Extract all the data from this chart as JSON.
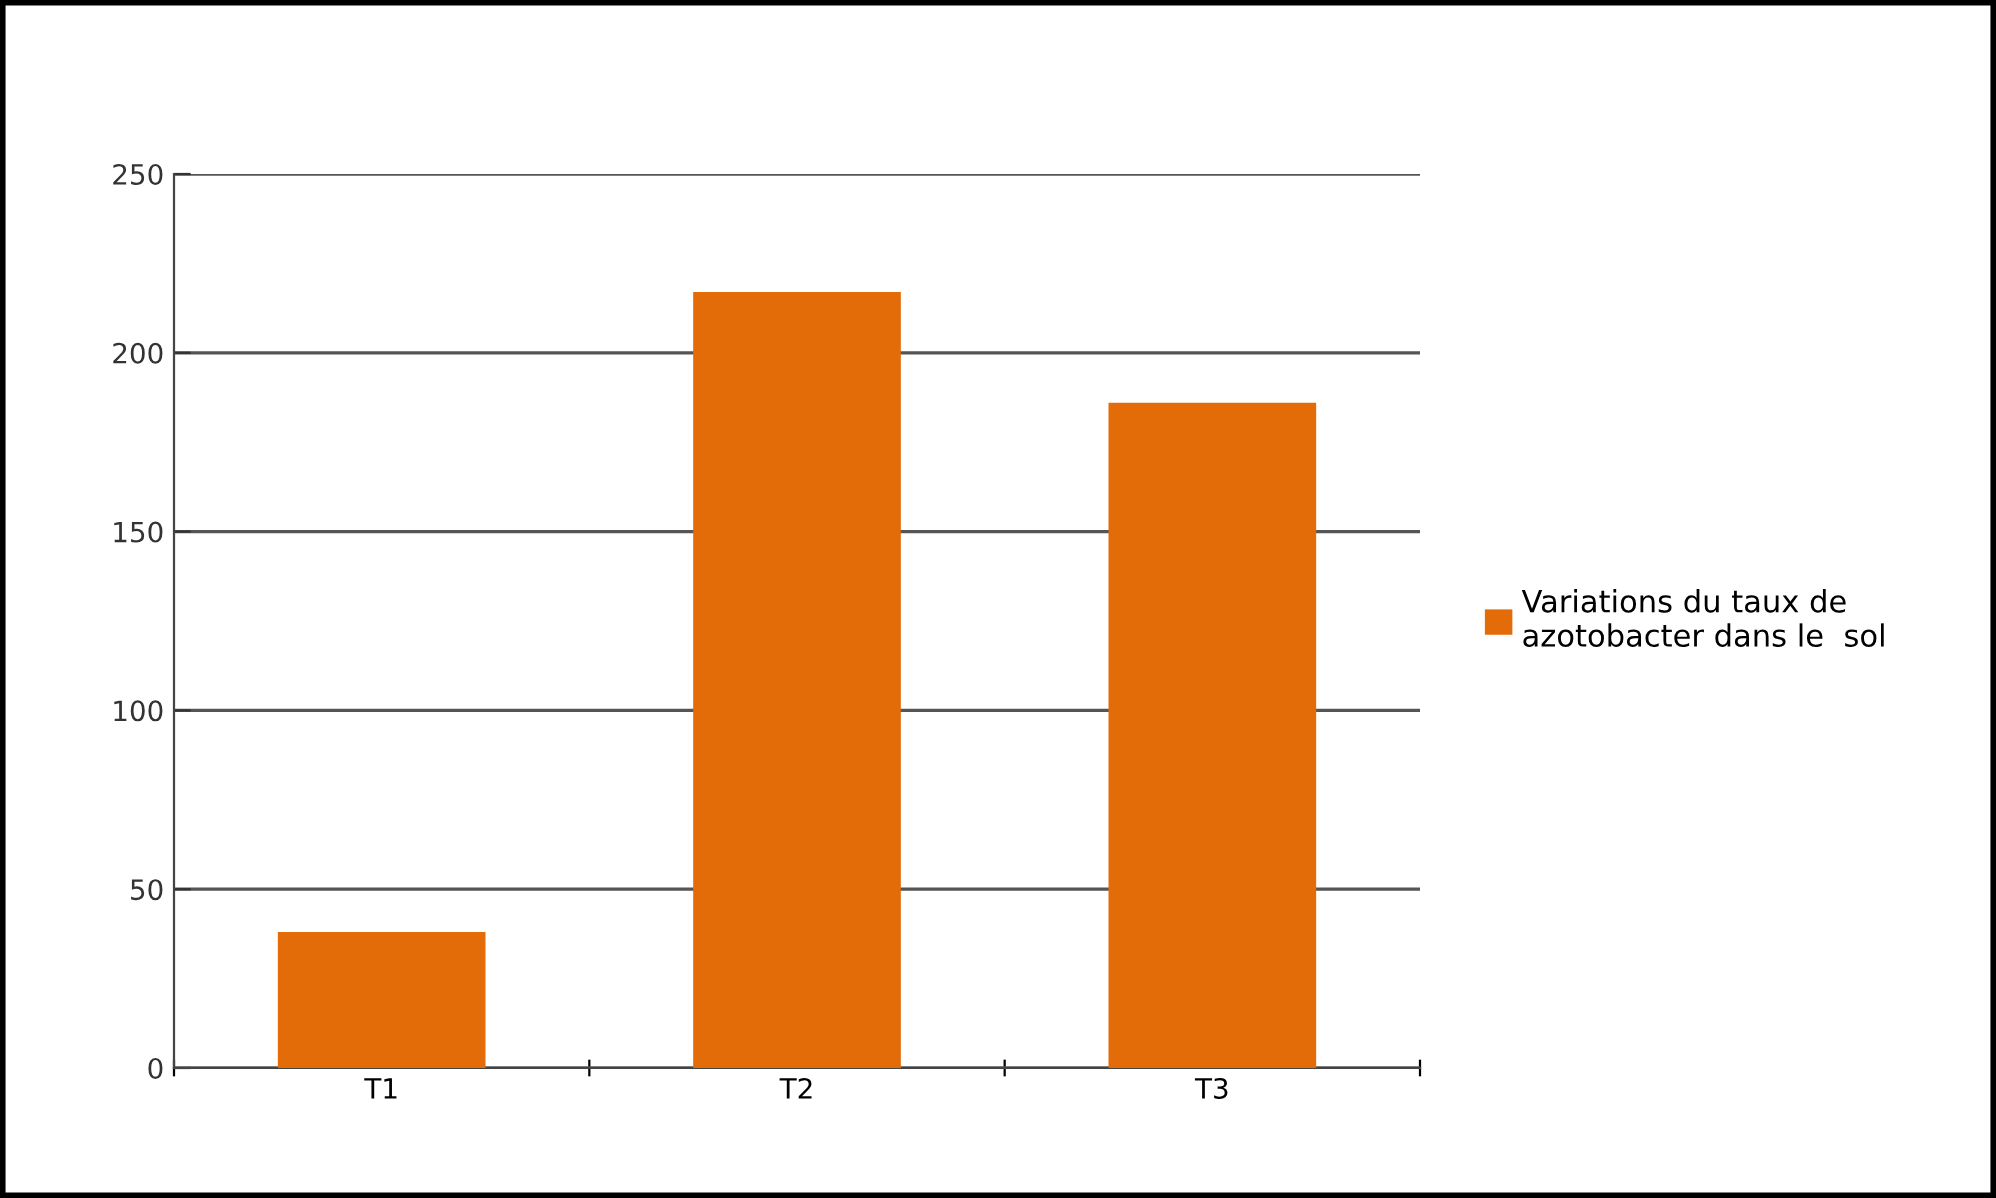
{
  "chart_data": {
    "type": "bar",
    "categories": [
      "T1",
      "T2",
      "T3"
    ],
    "series": [
      {
        "name": "Variations du taux de\nazotobacter dans le  sol",
        "color": "#e36c09",
        "values": [
          38,
          217,
          186
        ]
      }
    ],
    "ylim": [
      0,
      250
    ],
    "yticks": [
      0,
      50,
      100,
      150,
      200,
      250
    ],
    "grid": "y",
    "legend": "right"
  }
}
